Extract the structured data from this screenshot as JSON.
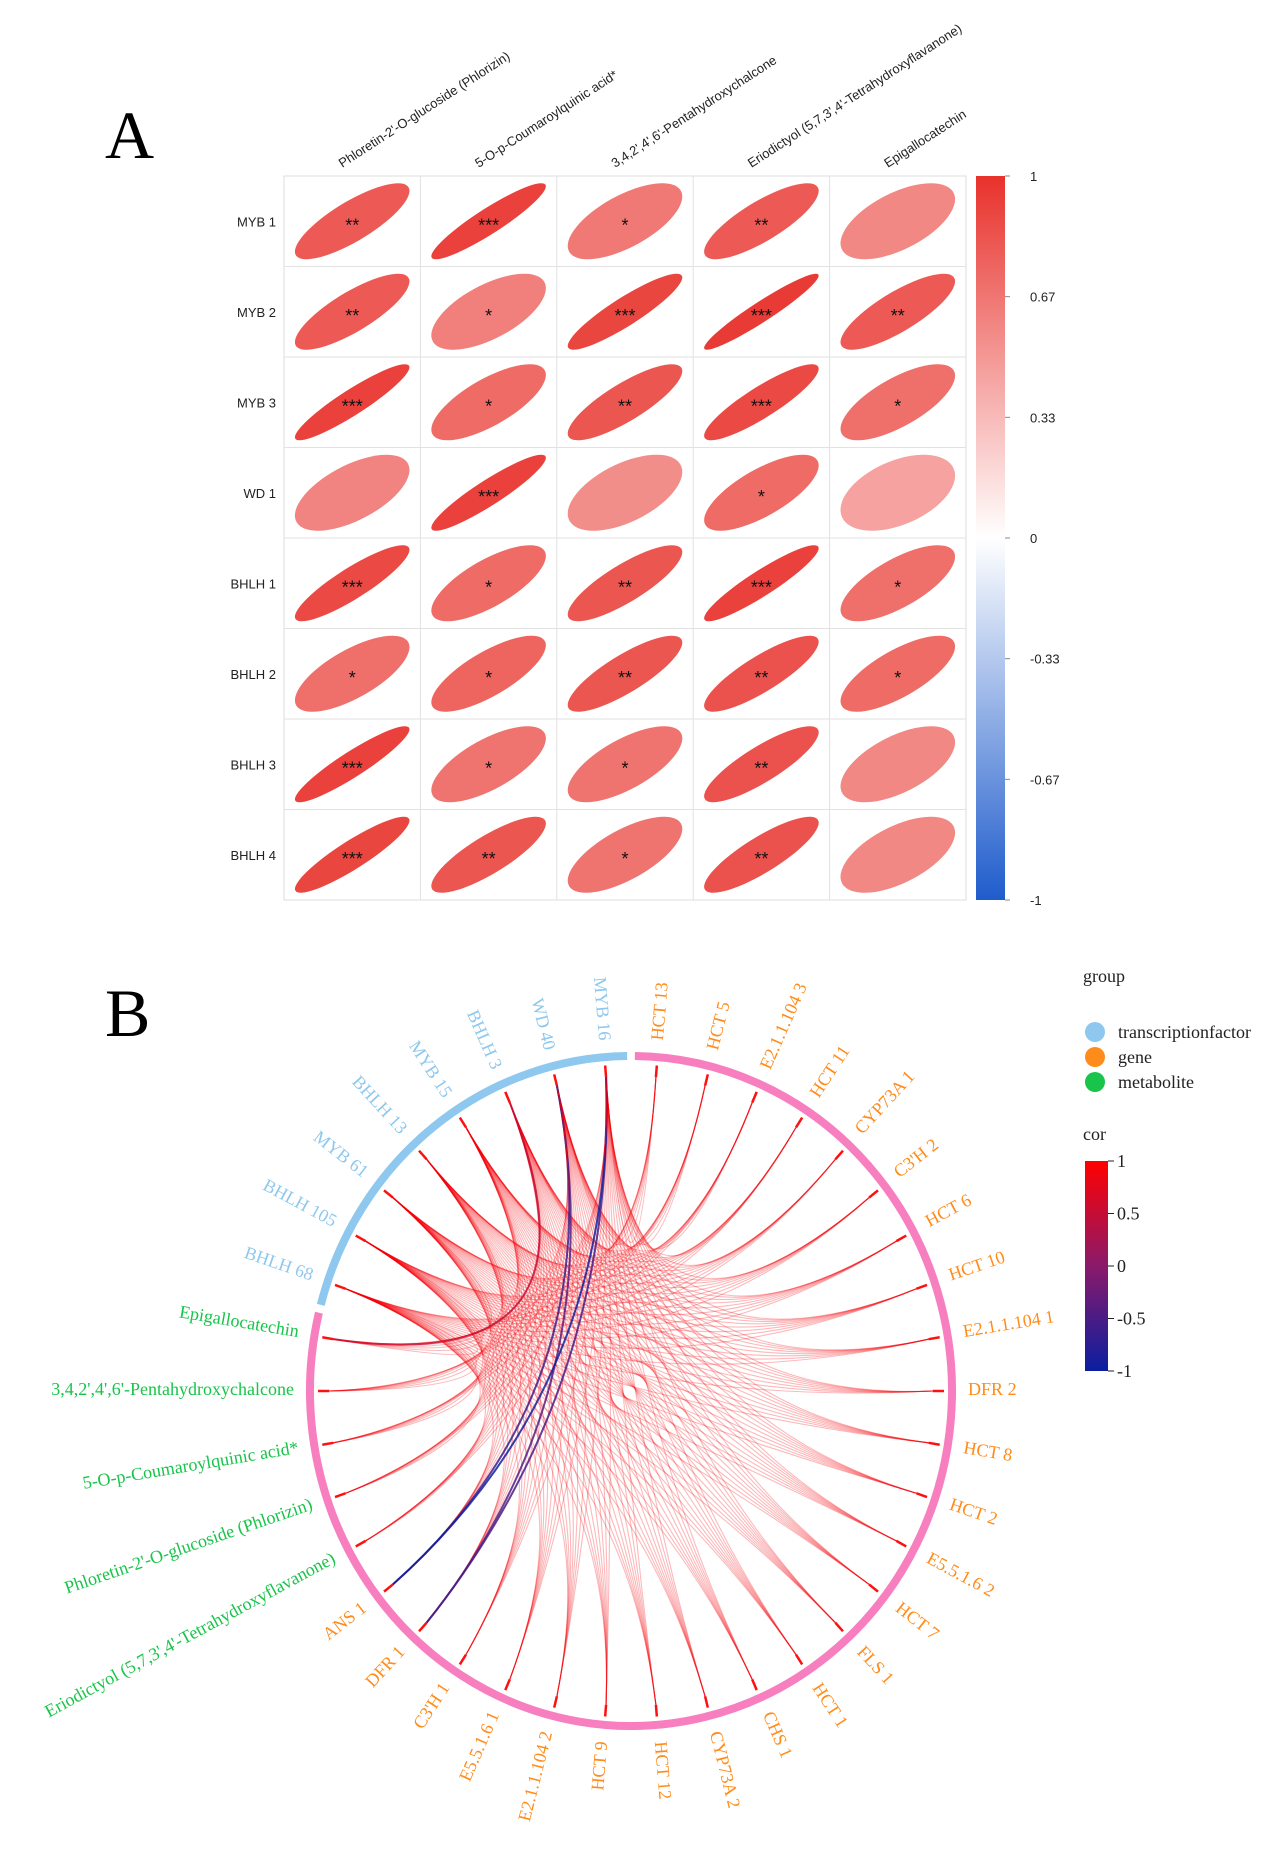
{
  "chart_data": [
    {
      "type": "heatmap",
      "panel_label": "A",
      "columns": [
        "Phloretin-2'-O-glucoside (Phlorizin)",
        "5-O-p-Coumaroylquinic acid*",
        "3,4,2',4',6'-Pentahydroxychalcone",
        "Eriodictyol (5,7,3',4'-Tetrahydroxyflavanone)",
        "Epigallocatechin"
      ],
      "rows": [
        "MYB  1",
        "MYB  2",
        "MYB  3",
        "WD  1",
        "BHLH  1",
        "BHLH  2",
        "BHLH  3",
        "BHLH  4"
      ],
      "values": [
        [
          0.8,
          0.92,
          0.65,
          0.8,
          0.58
        ],
        [
          0.8,
          0.62,
          0.9,
          0.95,
          0.8
        ],
        [
          0.92,
          0.72,
          0.82,
          0.88,
          0.7
        ],
        [
          0.6,
          0.92,
          0.55,
          0.72,
          0.45
        ],
        [
          0.88,
          0.72,
          0.82,
          0.92,
          0.7
        ],
        [
          0.7,
          0.75,
          0.82,
          0.84,
          0.72
        ],
        [
          0.92,
          0.68,
          0.68,
          0.84,
          0.58
        ],
        [
          0.9,
          0.82,
          0.68,
          0.84,
          0.58
        ]
      ],
      "significance": [
        [
          "**",
          "***",
          "*",
          "**",
          ""
        ],
        [
          "**",
          "*",
          "***",
          "***",
          "**"
        ],
        [
          "***",
          "*",
          "**",
          "***",
          "*"
        ],
        [
          "",
          "***",
          "",
          "*",
          ""
        ],
        [
          "***",
          "*",
          "**",
          "***",
          "*"
        ],
        [
          "*",
          "*",
          "**",
          "**",
          "*"
        ],
        [
          "***",
          "*",
          "*",
          "**",
          ""
        ],
        [
          "***",
          "**",
          "*",
          "**",
          ""
        ]
      ],
      "colorbar": {
        "ticks": [
          "1",
          "0.67",
          "0.33",
          "0",
          "-0.33",
          "-0.67",
          "-1"
        ],
        "range": [
          -1,
          1
        ],
        "colors": {
          "high": "#e8312b",
          "mid": "#ffffff",
          "low": "#1f5ccc"
        }
      }
    },
    {
      "type": "chord",
      "panel_label": "B",
      "groups": {
        "transcriptionfactor": [
          "BHLH 68",
          "BHLH 105",
          "MYB 61",
          "BHLH 13",
          "MYB 15",
          "BHLH 3",
          "WD 40",
          "MYB 16"
        ],
        "gene": [
          "HCT 13",
          "HCT 5",
          "E2.1.1.104 3",
          "HCT 11",
          "CYP73A 1",
          "C3'H 2",
          "HCT 6",
          "HCT 10",
          "E2.1.1.104 1",
          "DFR 2",
          "HCT 8",
          "HCT 2",
          "E5.5.1.6 2",
          "HCT 7",
          "FLS 1",
          "HCT 1",
          "CHS 1",
          "CYP73A 2",
          "HCT 12",
          "HCT 9",
          "E2.1.1.104 2",
          "E5.5.1.6 1",
          "C3'H 1",
          "DFR 1",
          "ANS 1"
        ],
        "metabolite": [
          "Eriodictyol (5,7,3',4'-Tetrahydroxyflavanone)",
          "Phloretin-2'-O-glucoside (Phlorizin)",
          "5-O-p-Coumaroylquinic acid*",
          "3,4,2',4',6'-Pentahydroxychalcone",
          "Epigallocatechin"
        ]
      },
      "links": {
        "sources": "transcriptionfactor",
        "targets": [
          "gene",
          "metabolite"
        ],
        "default_cor": 0.9,
        "exceptions": [
          {
            "from": "MYB 16",
            "to": "ANS 1",
            "cor": -0.95
          },
          {
            "from": "WD 40",
            "to": "ANS 1",
            "cor": -0.6
          },
          {
            "from": "MYB 16",
            "to": "DFR 1",
            "cor": -0.5
          },
          {
            "from": "WD 40",
            "to": "DFR 1",
            "cor": -0.4
          },
          {
            "from": "BHLH 3",
            "to": "Epigallocatechin",
            "cor": 0.5
          }
        ]
      },
      "legend": {
        "group_title": "group",
        "group_items": [
          {
            "label": "transcriptionfactor",
            "color": "#8ec8ee"
          },
          {
            "label": "gene",
            "color": "#ff8c1a"
          },
          {
            "label": "metabolite",
            "color": "#18c44a"
          }
        ],
        "cor_title": "cor",
        "cor_ticks": [
          "1",
          "0.5",
          "0",
          "-0.5",
          "-1"
        ],
        "cor_colors": {
          "high": "#ff0000",
          "mid": "#8a1a6a",
          "low": "#0a1ea0"
        }
      },
      "ring_colors": {
        "transcriptionfactor": "#8ec8ee",
        "other": "#f77fc0"
      }
    }
  ]
}
